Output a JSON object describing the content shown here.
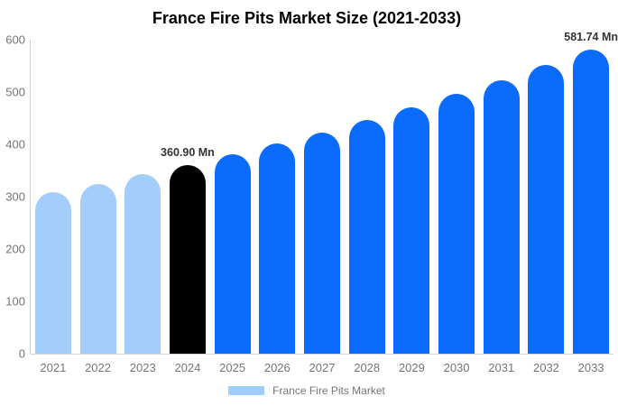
{
  "title": "France Fire Pits Market Size (2021-2033)",
  "legend": {
    "label": "France Fire Pits Market",
    "swatch_color": "#A3CDFA"
  },
  "annotations": [
    {
      "year": "2024",
      "text": "360.90 Mn"
    },
    {
      "year": "2033",
      "text": "581.74 Mn"
    }
  ],
  "colors": {
    "historical_bar": "#A3CDFA",
    "base_year_bar": "#000000",
    "forecast_bar": "#0A6BFC",
    "axis_line": "#cccccc",
    "tick_label": "#757575",
    "annotation_text": "#333333",
    "title_text": "#000000",
    "background": "#ffffff"
  },
  "chart_data": {
    "type": "bar",
    "title": "France Fire Pits Market Size (2021-2033)",
    "xlabel": "",
    "ylabel": "",
    "categories": [
      "2021",
      "2022",
      "2023",
      "2024",
      "2025",
      "2026",
      "2027",
      "2028",
      "2029",
      "2030",
      "2031",
      "2032",
      "2033"
    ],
    "values": [
      307.8,
      324.6,
      342.3,
      360.9,
      380.6,
      401.3,
      423.2,
      446.2,
      470.5,
      496.2,
      523.2,
      551.7,
      581.74
    ],
    "colors": [
      "#A3CDFA",
      "#A3CDFA",
      "#A3CDFA",
      "#000000",
      "#0A6BFC",
      "#0A6BFC",
      "#0A6BFC",
      "#0A6BFC",
      "#0A6BFC",
      "#0A6BFC",
      "#0A6BFC",
      "#0A6BFC",
      "#0A6BFC"
    ],
    "data_labels": {
      "2024": "360.90 Mn",
      "2033": "581.74 Mn"
    },
    "ylim": [
      0,
      600
    ],
    "yticks": [
      0,
      100,
      200,
      300,
      400,
      500,
      600
    ],
    "grid": false,
    "legend_position": "bottom",
    "legend_entries": [
      "France Fire Pits Market"
    ]
  }
}
